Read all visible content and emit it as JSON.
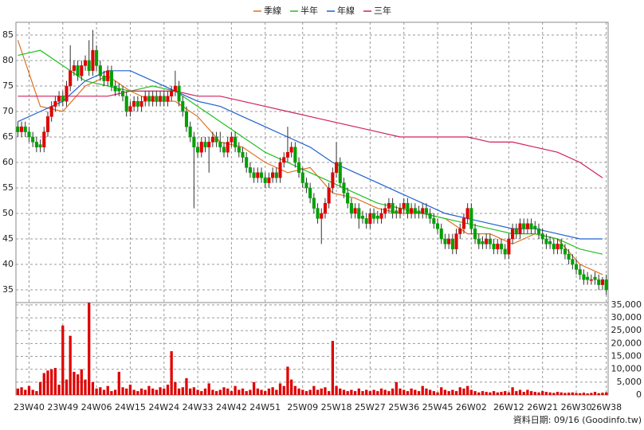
{
  "chart_data": {
    "type": "candlestick",
    "categories": [
      null,
      null,
      null,
      "23W40",
      null,
      null,
      null,
      null,
      null,
      null,
      null,
      null,
      "23W49",
      null,
      null,
      null,
      null,
      null,
      null,
      null,
      null,
      "24W06",
      null,
      null,
      null,
      null,
      null,
      null,
      null,
      null,
      "24W15",
      null,
      null,
      null,
      null,
      null,
      null,
      null,
      null,
      "24W24",
      null,
      null,
      null,
      null,
      null,
      null,
      null,
      null,
      "24W33",
      null,
      null,
      null,
      null,
      null,
      null,
      null,
      null,
      "24W42",
      null,
      null,
      null,
      null,
      null,
      null,
      null,
      null,
      "24W51",
      null,
      null,
      null,
      null,
      null,
      null,
      null,
      null,
      null,
      "25W09",
      null,
      null,
      null,
      null,
      null,
      null,
      null,
      null,
      "25W18",
      null,
      null,
      null,
      null,
      null,
      null,
      null,
      null,
      "25W27",
      null,
      null,
      null,
      null,
      null,
      null,
      null,
      null,
      "25W36",
      null,
      null,
      null,
      null,
      null,
      null,
      null,
      null,
      "25W45",
      null,
      null,
      null,
      null,
      null,
      null,
      null,
      null,
      "26W02",
      null,
      null,
      null,
      null,
      null,
      null,
      null,
      null,
      null,
      "26W12",
      null,
      null,
      null,
      null,
      null,
      null,
      null,
      null,
      "26W21",
      null,
      null,
      null,
      null,
      null,
      null,
      null,
      null,
      "26W30",
      null,
      null,
      null,
      null,
      null,
      null,
      null,
      "26W38"
    ],
    "open": [
      67,
      66,
      67,
      66,
      65,
      64,
      63.5,
      63,
      66,
      69,
      71,
      72,
      73,
      72,
      75,
      78,
      79,
      77,
      79,
      80,
      78,
      82,
      79,
      77,
      76,
      78,
      75,
      74.5,
      74,
      73,
      70,
      71,
      72,
      71,
      72,
      73,
      72,
      73,
      72,
      73,
      72,
      73,
      74,
      75,
      72,
      70,
      67,
      65,
      63,
      62,
      64,
      63,
      64,
      65,
      64,
      63,
      62,
      64,
      65,
      63,
      62,
      61,
      59,
      58,
      57,
      58,
      57,
      56,
      57,
      58,
      57,
      60,
      61,
      62,
      63,
      60,
      58,
      56,
      55,
      53,
      51,
      49,
      50,
      52,
      55,
      58,
      60,
      56,
      54,
      52,
      50,
      51,
      49.5,
      49,
      48,
      50,
      49.5,
      49,
      50,
      51,
      52,
      50.5,
      50,
      51,
      52,
      50,
      51,
      50.5,
      50,
      51,
      50,
      49,
      48,
      47,
      45,
      44,
      45,
      43,
      46,
      47,
      49,
      51,
      47,
      45,
      44.5,
      44,
      45,
      44,
      43,
      44,
      43,
      42,
      45,
      47,
      46,
      48,
      47,
      48,
      47.5,
      47,
      46,
      45,
      44.5,
      44,
      43,
      44,
      43,
      42,
      41,
      40,
      39,
      38,
      37.5,
      37,
      37.5,
      37,
      36,
      37
    ],
    "high": [
      68,
      68,
      68,
      67,
      66,
      65,
      64.5,
      67,
      70,
      72,
      73,
      74,
      74,
      76,
      83,
      80,
      80,
      80,
      81,
      84,
      86,
      83,
      80,
      78,
      79,
      79,
      76,
      75.5,
      75,
      74,
      72,
      73,
      73,
      73,
      74,
      74,
      74,
      74,
      74,
      74,
      74,
      75,
      78,
      76,
      73,
      71,
      68,
      66,
      64,
      65,
      65,
      65,
      66,
      66,
      66,
      64,
      65,
      66,
      66,
      64,
      63,
      62,
      60,
      59,
      59,
      59,
      58,
      58,
      59,
      59,
      61,
      62,
      67,
      64,
      64,
      61,
      59,
      57,
      56,
      54,
      52,
      51,
      53,
      56,
      59,
      64,
      61,
      57,
      55,
      53,
      52,
      52,
      50.5,
      50,
      51,
      51,
      50.5,
      51,
      52,
      53,
      53,
      51.5,
      52,
      53,
      53,
      52,
      52,
      51.5,
      52,
      52,
      51,
      50,
      49,
      48,
      46,
      46,
      46,
      47,
      48,
      50,
      52,
      52,
      48,
      46,
      45.5,
      46,
      46,
      45,
      45,
      45,
      44,
      46,
      48,
      48,
      49,
      49,
      49,
      49,
      48.5,
      48,
      47,
      46,
      45.5,
      45,
      45,
      45,
      44,
      43,
      42,
      41,
      40,
      39,
      38.5,
      38,
      38.5,
      38,
      37.5,
      38
    ],
    "low": [
      65,
      65,
      65,
      64,
      63,
      62,
      62,
      62,
      65,
      68,
      70,
      71,
      71,
      71,
      74,
      77,
      76,
      76,
      78,
      77,
      77,
      78,
      76,
      75,
      75,
      74,
      73,
      73,
      72,
      69,
      69,
      70,
      70,
      70,
      71,
      71,
      71,
      71,
      71,
      71,
      71,
      72,
      73,
      71,
      69,
      66,
      64,
      51,
      61,
      61,
      62,
      58,
      63,
      63,
      62,
      61,
      61,
      63,
      62,
      61,
      60,
      58,
      57,
      56,
      56,
      56,
      55,
      55,
      56,
      56,
      56,
      59,
      60,
      61,
      59,
      57,
      55,
      54,
      52,
      50,
      48,
      44,
      49,
      51,
      54,
      57,
      55,
      53,
      51,
      49,
      49,
      47,
      48,
      47,
      47,
      48,
      48,
      48,
      49,
      50,
      49,
      49,
      49,
      50,
      49,
      49,
      49,
      49,
      49,
      49,
      48,
      47,
      46,
      44,
      43,
      43,
      42,
      42,
      45,
      46,
      48,
      46,
      44,
      43,
      43,
      43,
      43,
      42,
      42,
      42,
      41,
      41,
      44,
      45,
      45,
      46,
      46,
      46,
      46,
      45,
      44,
      43,
      43,
      42,
      42,
      42,
      41,
      40,
      39,
      38,
      37,
      36,
      36,
      36,
      36,
      35,
      35,
      34
    ],
    "close": [
      66,
      67,
      66,
      65,
      64,
      63,
      63,
      66,
      69,
      71,
      72,
      73,
      72,
      75,
      78,
      79,
      77,
      79,
      80,
      78,
      82,
      79,
      77,
      76,
      78,
      75,
      74,
      74,
      73,
      70,
      71,
      72,
      71,
      72,
      73,
      72,
      73,
      72,
      73,
      72,
      73,
      74,
      75,
      72,
      70,
      67,
      65,
      63,
      62,
      64,
      63,
      64,
      65,
      64,
      63,
      62,
      64,
      65,
      63,
      62,
      61,
      59,
      58,
      57,
      58,
      57,
      56,
      57,
      58,
      57,
      60,
      61,
      62,
      63,
      60,
      58,
      56,
      55,
      53,
      51,
      49,
      50,
      52,
      55,
      58,
      60,
      56,
      54,
      52,
      50,
      51,
      49,
      49,
      48,
      50,
      49,
      49,
      50,
      51,
      52,
      50,
      50,
      51,
      52,
      50,
      51,
      50,
      50,
      51,
      50,
      49,
      48,
      47,
      45,
      44,
      45,
      43,
      46,
      47,
      49,
      51,
      47,
      45,
      44,
      44,
      45,
      44,
      43,
      44,
      43,
      42,
      45,
      47,
      46,
      48,
      47,
      48,
      47,
      47,
      46,
      45,
      44,
      44,
      43,
      44,
      43,
      42,
      41,
      40,
      39,
      38,
      37,
      37,
      37,
      37,
      36,
      37,
      35
    ],
    "up_color": "#e00000",
    "down_color": "#00a000",
    "ylim": [
      32.5,
      87.5
    ],
    "yticks": [
      35,
      40,
      45,
      50,
      55,
      60,
      65,
      70,
      75,
      80,
      85
    ],
    "grid": true,
    "series": [
      {
        "name": "季線",
        "color": "#e07020",
        "x": [
          0,
          6,
          12,
          18,
          24,
          30,
          36,
          42,
          48,
          54,
          60,
          66,
          72,
          78,
          84,
          90,
          96,
          102,
          108,
          114,
          120,
          126,
          132,
          138,
          144,
          150,
          156
        ],
        "values": [
          84,
          71,
          70,
          75,
          77,
          74,
          72,
          72,
          69,
          64,
          63,
          60,
          58,
          59,
          54,
          53,
          51,
          50,
          50,
          49,
          46,
          46,
          44,
          46,
          45,
          40,
          38
        ]
      },
      {
        "name": "半年",
        "color": "#20c020",
        "x": [
          0,
          6,
          12,
          18,
          24,
          30,
          36,
          42,
          48,
          54,
          60,
          66,
          72,
          78,
          84,
          90,
          96,
          102,
          108,
          114,
          120,
          126,
          132,
          138,
          144,
          150,
          156
        ],
        "values": [
          81,
          82,
          79,
          76,
          75,
          74,
          75,
          74,
          71,
          68,
          65,
          62,
          60,
          58,
          56,
          54,
          52,
          51,
          50,
          49,
          48,
          47,
          46,
          46,
          45,
          43,
          42
        ]
      },
      {
        "name": "年線",
        "color": "#2060d0",
        "x": [
          0,
          6,
          12,
          18,
          24,
          30,
          36,
          42,
          48,
          54,
          60,
          66,
          72,
          78,
          84,
          90,
          96,
          102,
          108,
          114,
          120,
          126,
          132,
          138,
          144,
          150,
          156
        ],
        "values": [
          68,
          70,
          72,
          76,
          78,
          78,
          76,
          74,
          72,
          71,
          69,
          67,
          65,
          63,
          60,
          58,
          56,
          54,
          52,
          50,
          49,
          48,
          47,
          47,
          46,
          45,
          45
        ]
      },
      {
        "name": "三年",
        "color": "#d02060",
        "x": [
          0,
          6,
          12,
          18,
          24,
          30,
          36,
          42,
          48,
          54,
          60,
          66,
          72,
          78,
          84,
          90,
          96,
          102,
          108,
          114,
          120,
          126,
          132,
          138,
          144,
          150,
          156
        ],
        "values": [
          73,
          73,
          73,
          73,
          73,
          74,
          74,
          74,
          73,
          73,
          72,
          71,
          70,
          69,
          68,
          67,
          66,
          65,
          65,
          65,
          65,
          64,
          64,
          63,
          62,
          60,
          57
        ]
      }
    ],
    "volume": {
      "type": "bar",
      "color": "#e00000",
      "values": [
        2500,
        3000,
        2000,
        3500,
        2000,
        1500,
        5000,
        8500,
        9500,
        10000,
        10500,
        4000,
        27000,
        6000,
        23000,
        9000,
        8000,
        10000,
        6000,
        35800,
        5000,
        2500,
        3000,
        2000,
        3500,
        1500,
        2000,
        9000,
        3000,
        2500,
        4000,
        2000,
        1500,
        2500,
        2000,
        3500,
        2500,
        2000,
        3000,
        2500,
        4000,
        17000,
        5000,
        2500,
        3000,
        6500,
        2500,
        3000,
        2000,
        1500,
        2500,
        4500,
        2000,
        1500,
        2000,
        3000,
        2500,
        1500,
        3500,
        2000,
        2500,
        1500,
        2000,
        5000,
        2500,
        2000,
        1500,
        2500,
        3000,
        2000,
        4500,
        3500,
        11000,
        6000,
        3500,
        2500,
        2000,
        1500,
        2000,
        3500,
        2000,
        2500,
        3000,
        1500,
        21000,
        3500,
        2500,
        2000,
        1500,
        2000,
        1500,
        2500,
        1500,
        2000,
        1500,
        2000,
        1500,
        2500,
        2000,
        1500,
        2500,
        5000,
        2500,
        2000,
        1500,
        2500,
        2000,
        1500,
        3500,
        2500,
        2000,
        1500,
        1000,
        3000,
        2000,
        1500,
        2000,
        1500,
        3000,
        2500,
        3500,
        2000,
        1500,
        1000,
        1500,
        1200,
        1000,
        1500,
        1000,
        1200,
        1500,
        1000,
        3000,
        1500,
        2000,
        1200,
        2000,
        1500,
        1200,
        1000,
        1500,
        1200,
        1000,
        800,
        1200,
        1000,
        800,
        900,
        1000,
        800,
        700,
        900,
        600,
        800,
        1200,
        700,
        900,
        1000
      ],
      "ylim": [
        0,
        35900
      ],
      "yticks": [
        0,
        {
          "value": 5000,
          "label": "5,000"
        },
        {
          "value": 10000,
          "label": "10,000"
        },
        {
          "value": 15000,
          "label": "15,000"
        },
        {
          "value": 20000,
          "label": "20,000"
        },
        {
          "value": 25000,
          "label": "25,000"
        },
        {
          "value": 30000,
          "label": "30,000"
        },
        {
          "value": 35000,
          "label": "35,000"
        }
      ]
    },
    "footer": "資料日期: 09/16 (Goodinfo.tw)"
  }
}
